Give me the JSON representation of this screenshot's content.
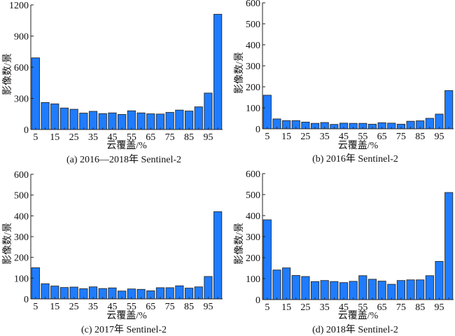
{
  "colors": {
    "bar_fill": "#1f7cff",
    "bar_stroke": "#2a2a2a",
    "axis": "#222222"
  },
  "chart_data": [
    {
      "id": "a",
      "type": "bar",
      "caption": "(a) 2016—2018年 Sentinel-2",
      "xlabel": "云覆盖/%",
      "ylabel": "影像数/景",
      "ylim": [
        0,
        1200
      ],
      "yticks": [
        "0",
        "300",
        "600",
        "900",
        "1200"
      ],
      "ytick_values": [
        0,
        300,
        600,
        900,
        1200
      ],
      "xtick_labels": [
        "5",
        "15",
        "25",
        "35",
        "45",
        "55",
        "65",
        "75",
        "85",
        "95"
      ],
      "categories": [
        5,
        10,
        15,
        20,
        25,
        30,
        35,
        40,
        45,
        50,
        55,
        60,
        65,
        70,
        75,
        80,
        85,
        90,
        95,
        100
      ],
      "values": [
        690,
        260,
        247,
        207,
        195,
        158,
        175,
        153,
        160,
        145,
        180,
        160,
        151,
        149,
        165,
        187,
        178,
        218,
        351,
        1110
      ],
      "grid": false
    },
    {
      "id": "b",
      "type": "bar",
      "caption": "(b) 2016年 Sentinel-2",
      "xlabel": "云覆盖/%",
      "ylabel": "影像数/景",
      "ylim": [
        0,
        600
      ],
      "yticks": [
        "0",
        "100",
        "200",
        "300",
        "400",
        "500",
        "600"
      ],
      "ytick_values": [
        0,
        100,
        200,
        300,
        400,
        500,
        600
      ],
      "xtick_labels": [
        "5",
        "15",
        "25",
        "35",
        "45",
        "55",
        "65",
        "75",
        "85",
        "95"
      ],
      "categories": [
        5,
        10,
        15,
        20,
        25,
        30,
        35,
        40,
        45,
        50,
        55,
        60,
        65,
        70,
        75,
        80,
        85,
        90,
        95,
        100
      ],
      "values": [
        160,
        47,
        39,
        39,
        32,
        26,
        30,
        21,
        27,
        26,
        26,
        22,
        29,
        27,
        22,
        36,
        38,
        50,
        70,
        182
      ],
      "grid": false
    },
    {
      "id": "c",
      "type": "bar",
      "caption": "(c) 2017年 Sentinel-2",
      "xlabel": "云覆盖/%",
      "ylabel": "影像数/景",
      "ylim": [
        0,
        600
      ],
      "yticks": [
        "0",
        "100",
        "200",
        "300",
        "400",
        "500",
        "600"
      ],
      "ytick_values": [
        0,
        100,
        200,
        300,
        400,
        500,
        600
      ],
      "xtick_labels": [
        "5",
        "15",
        "25",
        "35",
        "45",
        "55",
        "65",
        "75",
        "85",
        "95"
      ],
      "categories": [
        5,
        10,
        15,
        20,
        25,
        30,
        35,
        40,
        45,
        50,
        55,
        60,
        65,
        70,
        75,
        80,
        85,
        90,
        95,
        100
      ],
      "values": [
        150,
        73,
        62,
        55,
        57,
        49,
        58,
        50,
        53,
        38,
        48,
        46,
        39,
        54,
        54,
        63,
        52,
        58,
        108,
        420
      ],
      "grid": false
    },
    {
      "id": "d",
      "type": "bar",
      "caption": "(d) 2018年 Sentinel-2",
      "xlabel": "云覆盖/%",
      "ylabel": "影像数/景",
      "ylim": [
        0,
        600
      ],
      "yticks": [
        "0",
        "100",
        "200",
        "300",
        "400",
        "500",
        "600"
      ],
      "ytick_values": [
        0,
        100,
        200,
        300,
        400,
        500,
        600
      ],
      "xtick_labels": [
        "5",
        "15",
        "25",
        "35",
        "45",
        "55",
        "65",
        "75",
        "85",
        "95"
      ],
      "categories": [
        5,
        10,
        15,
        20,
        25,
        30,
        35,
        40,
        45,
        50,
        55,
        60,
        65,
        70,
        75,
        80,
        85,
        90,
        95,
        100
      ],
      "values": [
        380,
        141,
        151,
        115,
        110,
        86,
        91,
        86,
        81,
        87,
        114,
        97,
        88,
        73,
        91,
        94,
        94,
        114,
        182,
        510
      ],
      "grid": false
    }
  ]
}
